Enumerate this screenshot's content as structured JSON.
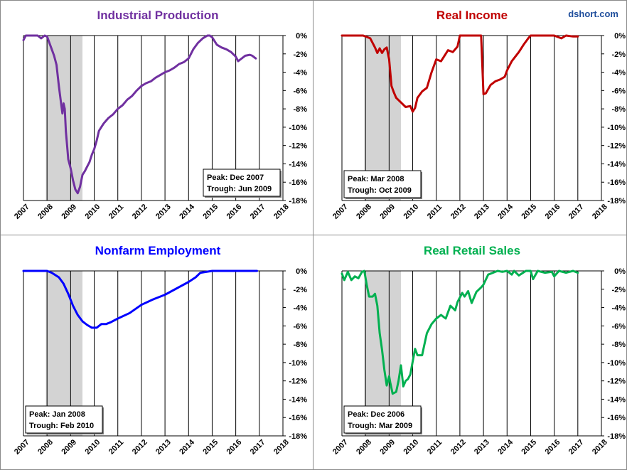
{
  "watermark": "dshort.com",
  "colors": {
    "watermark": "#1f4e9c",
    "grid": "#000000",
    "recession": "#d3d3d3",
    "frame": "#8a8a8a"
  },
  "chart_data": [
    {
      "type": "line",
      "title": "Industrial Production",
      "color": "#7030a0",
      "x_start": 2007,
      "x_end": 2018,
      "xticks": [
        "2007",
        "2008",
        "2009",
        "2010",
        "2011",
        "2012",
        "2013",
        "2014",
        "2015",
        "2016",
        "2017",
        "2018"
      ],
      "ylim": [
        -18,
        0
      ],
      "yticks": [
        "0%",
        "-2%",
        "-4%",
        "-6%",
        "-8%",
        "-10%",
        "-12%",
        "-14%",
        "-16%",
        "-18%"
      ],
      "recession": [
        2007.95,
        2009.5
      ],
      "peak_label": "Peak: Dec 2007",
      "trough_label": "Trough: Jun 2009",
      "box": "bottom-right",
      "series": [
        {
          "x": [
            2007.0,
            2007.1,
            2007.3,
            2007.5,
            2007.6,
            2007.75,
            2007.9,
            2008.0,
            2008.1,
            2008.2,
            2008.3,
            2008.4,
            2008.5,
            2008.6,
            2008.65,
            2008.7,
            2008.75,
            2008.8,
            2008.85,
            2008.9,
            2008.95,
            2009.0,
            2009.1,
            2009.2,
            2009.3,
            2009.4,
            2009.5,
            2009.6,
            2009.7,
            2009.8,
            2009.9,
            2010.0,
            2010.1,
            2010.2,
            2010.4,
            2010.5,
            2010.6,
            2010.8,
            2011.0,
            2011.2,
            2011.4,
            2011.6,
            2011.8,
            2012.0,
            2012.2,
            2012.4,
            2012.6,
            2012.8,
            2013.0,
            2013.2,
            2013.4,
            2013.6,
            2013.8,
            2014.0,
            2014.2,
            2014.4,
            2014.6,
            2014.8,
            2014.9,
            2015.0,
            2015.2,
            2015.4,
            2015.6,
            2015.8,
            2016.0,
            2016.1,
            2016.2,
            2016.4,
            2016.6,
            2016.7,
            2016.85
          ],
          "y": [
            -0.5,
            0.0,
            0.0,
            0.0,
            0.0,
            -0.3,
            0.0,
            -0.1,
            -0.8,
            -1.5,
            -2.2,
            -3.2,
            -5.5,
            -7.5,
            -8.5,
            -7.4,
            -8.0,
            -10.5,
            -12.0,
            -13.5,
            -14.0,
            -14.5,
            -15.8,
            -16.8,
            -17.2,
            -16.5,
            -15.2,
            -14.8,
            -14.3,
            -13.8,
            -13.0,
            -12.4,
            -11.5,
            -10.4,
            -9.6,
            -9.3,
            -9.0,
            -8.6,
            -8.0,
            -7.6,
            -7.0,
            -6.6,
            -6.0,
            -5.5,
            -5.2,
            -5.0,
            -4.6,
            -4.3,
            -4.0,
            -3.8,
            -3.5,
            -3.1,
            -2.9,
            -2.5,
            -1.5,
            -0.8,
            -0.3,
            0.0,
            0.0,
            -0.2,
            -1.0,
            -1.3,
            -1.5,
            -1.8,
            -2.3,
            -2.8,
            -2.6,
            -2.2,
            -2.1,
            -2.2,
            -2.5
          ]
        }
      ]
    },
    {
      "type": "line",
      "title": "Real Income",
      "color": "#c00000",
      "x_start": 2007,
      "x_end": 2018,
      "xticks": [
        "2007",
        "2008",
        "2009",
        "2010",
        "2011",
        "2012",
        "2013",
        "2014",
        "2015",
        "2016",
        "2017",
        "2018"
      ],
      "ylim": [
        -18,
        0
      ],
      "yticks": [
        "0%",
        "-2%",
        "-4%",
        "-6%",
        "-8%",
        "-10%",
        "-12%",
        "-14%",
        "-16%",
        "-18%"
      ],
      "recession": [
        2007.95,
        2009.5
      ],
      "peak_label": "Peak: Mar 2008",
      "trough_label": "Trough: Oct 2009",
      "box": "bottom-left",
      "series": [
        {
          "x": [
            2007.0,
            2007.3,
            2007.6,
            2007.9,
            2008.2,
            2008.4,
            2008.5,
            2008.6,
            2008.7,
            2008.8,
            2008.9,
            2009.0,
            2009.1,
            2009.2,
            2009.3,
            2009.5,
            2009.7,
            2009.9,
            2010.0,
            2010.1,
            2010.2,
            2010.4,
            2010.6,
            2010.8,
            2011.0,
            2011.2,
            2011.5,
            2011.7,
            2011.9,
            2012.0,
            2012.4,
            2012.6,
            2012.9,
            2013.0,
            2013.1,
            2013.3,
            2013.5,
            2013.7,
            2013.9,
            2014.0,
            2014.2,
            2014.5,
            2014.7,
            2014.9,
            2015.0,
            2015.5,
            2016.0,
            2016.3,
            2016.5,
            2016.8,
            2017.0
          ],
          "y": [
            0.0,
            0.0,
            0.0,
            0.0,
            -0.3,
            -1.3,
            -1.9,
            -1.4,
            -1.9,
            -1.5,
            -1.3,
            -2.6,
            -5.5,
            -6.2,
            -6.8,
            -7.3,
            -7.8,
            -7.7,
            -8.3,
            -7.9,
            -6.8,
            -6.1,
            -5.7,
            -4.0,
            -2.6,
            -2.8,
            -1.6,
            -1.8,
            -1.2,
            0.0,
            0.0,
            0.0,
            0.0,
            -6.4,
            -6.3,
            -5.4,
            -5.0,
            -4.8,
            -4.5,
            -3.8,
            -2.8,
            -1.8,
            -1.0,
            -0.3,
            0.0,
            0.0,
            0.0,
            -0.3,
            0.0,
            -0.1,
            -0.1
          ]
        }
      ]
    },
    {
      "type": "line",
      "title": "Nonfarm Employment",
      "color": "#0000ff",
      "x_start": 2007,
      "x_end": 2018,
      "xticks": [
        "2007",
        "2008",
        "2009",
        "2010",
        "2011",
        "2012",
        "2013",
        "2014",
        "2015",
        "2016",
        "2017",
        "2018"
      ],
      "ylim": [
        -18,
        0
      ],
      "yticks": [
        "0%",
        "-2%",
        "-4%",
        "-6%",
        "-8%",
        "-10%",
        "-12%",
        "-14%",
        "-16%",
        "-18%"
      ],
      "recession": [
        2007.95,
        2009.5
      ],
      "peak_label": "Peak: Jan 2008",
      "trough_label": "Trough: Feb 2010",
      "box": "bottom-left",
      "series": [
        {
          "x": [
            2007.0,
            2007.5,
            2008.0,
            2008.2,
            2008.5,
            2008.7,
            2008.9,
            2009.1,
            2009.3,
            2009.5,
            2009.7,
            2009.9,
            2010.1,
            2010.3,
            2010.5,
            2010.7,
            2011.0,
            2011.5,
            2012.0,
            2012.5,
            2013.0,
            2013.5,
            2014.0,
            2014.3,
            2014.5,
            2015.0,
            2015.5,
            2016.0,
            2016.5,
            2016.9
          ],
          "y": [
            0.0,
            0.0,
            0.0,
            -0.2,
            -0.7,
            -1.4,
            -2.5,
            -3.8,
            -4.8,
            -5.5,
            -5.9,
            -6.2,
            -6.2,
            -5.8,
            -5.8,
            -5.6,
            -5.2,
            -4.6,
            -3.7,
            -3.1,
            -2.6,
            -1.9,
            -1.2,
            -0.7,
            -0.2,
            0.0,
            0.0,
            0.0,
            0.0,
            0.0
          ]
        }
      ]
    },
    {
      "type": "line",
      "title": "Real Retail Sales",
      "color": "#00b050",
      "x_start": 2007,
      "x_end": 2018,
      "xticks": [
        "2007",
        "2008",
        "2009",
        "2010",
        "2011",
        "2012",
        "2013",
        "2014",
        "2015",
        "2016",
        "2017",
        "2018"
      ],
      "ylim": [
        -18,
        0
      ],
      "yticks": [
        "0%",
        "-2%",
        "-4%",
        "-6%",
        "-8%",
        "-10%",
        "-12%",
        "-14%",
        "-16%",
        "-18%"
      ],
      "recession": [
        2007.95,
        2009.5
      ],
      "peak_label": "Peak: Dec 2006",
      "trough_label": "Trough: Mar 2009",
      "box": "bottom-left",
      "series": [
        {
          "x": [
            2007.0,
            2007.1,
            2007.25,
            2007.4,
            2007.55,
            2007.7,
            2007.85,
            2007.95,
            2008.05,
            2008.15,
            2008.3,
            2008.4,
            2008.5,
            2008.6,
            2008.7,
            2008.8,
            2008.9,
            2009.0,
            2009.05,
            2009.15,
            2009.3,
            2009.4,
            2009.5,
            2009.6,
            2009.7,
            2009.8,
            2009.9,
            2010.0,
            2010.1,
            2010.2,
            2010.3,
            2010.4,
            2010.5,
            2010.6,
            2010.8,
            2011.0,
            2011.2,
            2011.4,
            2011.6,
            2011.8,
            2011.9,
            2012.1,
            2012.2,
            2012.35,
            2012.5,
            2012.7,
            2012.9,
            2013.0,
            2013.2,
            2013.4,
            2013.6,
            2013.8,
            2014.0,
            2014.2,
            2014.3,
            2014.5,
            2014.8,
            2015.0,
            2015.1,
            2015.3,
            2015.6,
            2015.9,
            2016.0,
            2016.2,
            2016.5,
            2016.8,
            2017.0
          ],
          "y": [
            -0.3,
            -1.0,
            -0.1,
            -1.0,
            -0.6,
            -0.8,
            -0.1,
            0.0,
            -1.5,
            -2.8,
            -2.8,
            -2.5,
            -3.8,
            -6.8,
            -8.6,
            -10.8,
            -12.5,
            -11.5,
            -12.2,
            -13.4,
            -13.2,
            -12.0,
            -10.3,
            -12.6,
            -12.0,
            -11.8,
            -11.3,
            -9.9,
            -8.5,
            -9.2,
            -9.2,
            -9.2,
            -8.0,
            -6.8,
            -5.8,
            -5.2,
            -4.8,
            -5.2,
            -3.8,
            -4.3,
            -3.4,
            -2.4,
            -2.8,
            -2.2,
            -3.5,
            -2.3,
            -1.8,
            -1.5,
            -0.4,
            -0.2,
            0.0,
            -0.1,
            0.0,
            -0.4,
            0.0,
            -0.5,
            0.0,
            0.0,
            -0.9,
            0.0,
            -0.2,
            -0.1,
            -0.6,
            0.0,
            -0.2,
            0.0,
            -0.2
          ]
        }
      ]
    }
  ]
}
